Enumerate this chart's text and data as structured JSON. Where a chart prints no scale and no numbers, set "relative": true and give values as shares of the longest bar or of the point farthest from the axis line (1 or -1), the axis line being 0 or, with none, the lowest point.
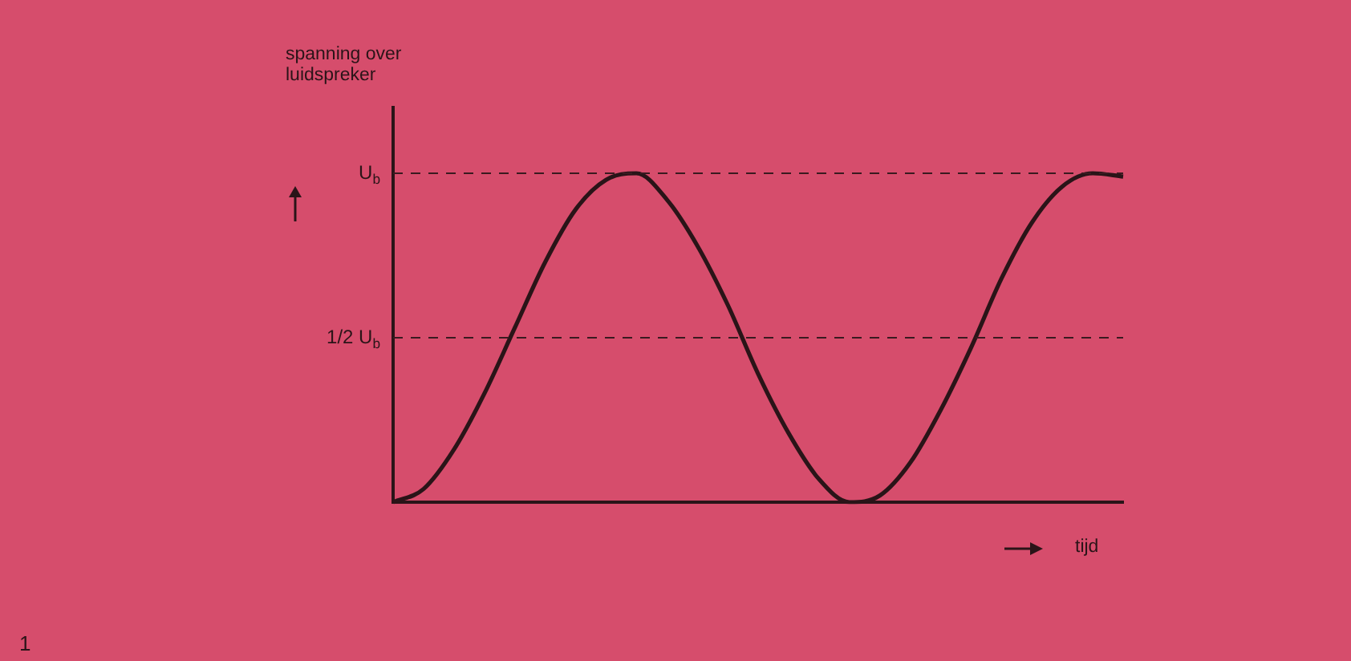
{
  "chart_data": {
    "type": "line",
    "ylabel": "spanning over luidspreker",
    "xlabel": "tijd",
    "annotations": [
      "1"
    ],
    "categories": [
      null,
      null,
      null,
      null,
      null,
      null,
      null,
      null,
      null,
      null,
      null,
      null,
      null,
      null,
      null,
      null,
      null,
      null,
      null,
      null,
      null,
      null,
      null,
      null,
      null
    ],
    "series": [
      {
        "color": "#2a1418",
        "values": [
          0,
          0.04,
          0.16,
          0.33,
          0.53,
          0.73,
          0.89,
          0.98,
          1.0,
          0.92,
          0.78,
          0.6,
          0.39,
          0.21,
          0.07,
          0.0,
          0.02,
          0.12,
          0.28,
          0.47,
          0.68,
          0.85,
          0.96,
          1.0,
          0.99
        ]
      }
    ],
    "relative": true,
    "ref_lines": [
      {
        "axis": "y",
        "value": 1,
        "label": "U$_{b}$",
        "line_style": "dashed",
        "color": "#3a1a20"
      },
      {
        "axis": "y",
        "value": 0.5,
        "label": "1/2 U$_{b}$",
        "line_style": "dashed",
        "color": "#3a1a20"
      }
    ],
    "legend": false,
    "grid": false,
    "marker": "none",
    "line_style": "solid",
    "tick_labels": false
  }
}
